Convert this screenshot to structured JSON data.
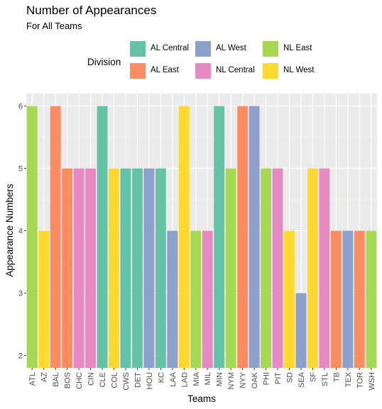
{
  "chart_data": {
    "type": "bar",
    "title": "Number of Appearances",
    "subtitle": "For All Teams",
    "xlabel": "Teams",
    "ylabel": "Appearance Numbers",
    "ylim": [
      1.8,
      6.2
    ],
    "yticks": [
      2,
      3,
      4,
      5,
      6
    ],
    "grid": true,
    "legend_position": "top",
    "legend_title": "Division",
    "legend": [
      {
        "name": "AL Central",
        "color": "#66C2A5"
      },
      {
        "name": "AL West",
        "color": "#8DA0CB"
      },
      {
        "name": "NL East",
        "color": "#A6D854"
      },
      {
        "name": "AL East",
        "color": "#FC8D62"
      },
      {
        "name": "NL Central",
        "color": "#E78AC3"
      },
      {
        "name": "NL West",
        "color": "#FFD92F"
      }
    ],
    "categories": [
      "ATL",
      "AZ",
      "BAL",
      "BOS",
      "CHC",
      "CIN",
      "CLE",
      "COL",
      "CWS",
      "DET",
      "HOU",
      "KC",
      "LAA",
      "LAD",
      "MIA",
      "MIL",
      "MIN",
      "NYM",
      "NYY",
      "OAK",
      "PHI",
      "PIT",
      "SD",
      "SEA",
      "SF",
      "STL",
      "TB",
      "TEX",
      "TOR",
      "WSH"
    ],
    "values": [
      6,
      4,
      6,
      5,
      5,
      5,
      6,
      5,
      5,
      5,
      5,
      5,
      4,
      6,
      4,
      4,
      6,
      5,
      6,
      6,
      5,
      5,
      4,
      3,
      5,
      5,
      4,
      4,
      4,
      4
    ],
    "division": [
      "NL East",
      "NL West",
      "AL East",
      "AL East",
      "NL Central",
      "NL Central",
      "AL Central",
      "NL West",
      "AL Central",
      "AL Central",
      "AL West",
      "AL Central",
      "AL West",
      "NL West",
      "NL East",
      "NL Central",
      "AL Central",
      "NL East",
      "AL East",
      "AL West",
      "NL East",
      "NL Central",
      "NL West",
      "AL West",
      "NL West",
      "NL Central",
      "AL East",
      "AL West",
      "AL East",
      "NL East"
    ]
  }
}
